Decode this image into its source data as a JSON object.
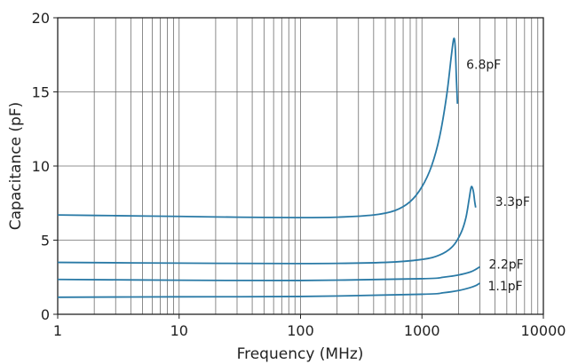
{
  "chart_data": {
    "type": "line",
    "title": "",
    "xlabel": "Frequency (MHz)",
    "ylabel": "Capacitance (pF)",
    "xscale": "log",
    "xlim": [
      1,
      10000
    ],
    "ylim": [
      0,
      20
    ],
    "grid": true,
    "x_ticks": [
      "1",
      "10",
      "100",
      "1000",
      "10000"
    ],
    "y_ticks": [
      "0",
      "5",
      "10",
      "15",
      "20"
    ],
    "line_color": "#2a7aa6",
    "series": [
      {
        "name": "6.8pF",
        "points": [
          [
            1,
            6.7
          ],
          [
            3,
            6.65
          ],
          [
            10,
            6.6
          ],
          [
            30,
            6.55
          ],
          [
            100,
            6.52
          ],
          [
            200,
            6.55
          ],
          [
            400,
            6.7
          ],
          [
            600,
            7.0
          ],
          [
            800,
            7.6
          ],
          [
            1000,
            8.6
          ],
          [
            1200,
            10.0
          ],
          [
            1400,
            12.0
          ],
          [
            1600,
            14.8
          ],
          [
            1750,
            17.5
          ],
          [
            1830,
            18.6
          ],
          [
            1880,
            18.0
          ],
          [
            1920,
            16.0
          ],
          [
            1960,
            14.2
          ]
        ]
      },
      {
        "name": "3.3pF",
        "points": [
          [
            1,
            3.5
          ],
          [
            10,
            3.45
          ],
          [
            100,
            3.42
          ],
          [
            500,
            3.5
          ],
          [
            1000,
            3.7
          ],
          [
            1400,
            4.0
          ],
          [
            1800,
            4.6
          ],
          [
            2100,
            5.5
          ],
          [
            2300,
            6.5
          ],
          [
            2450,
            7.8
          ],
          [
            2550,
            8.6
          ],
          [
            2650,
            8.3
          ],
          [
            2720,
            7.6
          ],
          [
            2770,
            7.2
          ]
        ]
      },
      {
        "name": "2.2pF",
        "points": [
          [
            1,
            2.35
          ],
          [
            10,
            2.3
          ],
          [
            100,
            2.28
          ],
          [
            1000,
            2.4
          ],
          [
            1500,
            2.5
          ],
          [
            2000,
            2.65
          ],
          [
            2500,
            2.85
          ],
          [
            2800,
            3.05
          ],
          [
            3000,
            3.2
          ]
        ]
      },
      {
        "name": "1.1pF",
        "points": [
          [
            1,
            1.15
          ],
          [
            10,
            1.18
          ],
          [
            100,
            1.2
          ],
          [
            1000,
            1.35
          ],
          [
            1500,
            1.45
          ],
          [
            2000,
            1.6
          ],
          [
            2500,
            1.8
          ],
          [
            2800,
            1.95
          ],
          [
            3000,
            2.1
          ]
        ]
      }
    ]
  }
}
